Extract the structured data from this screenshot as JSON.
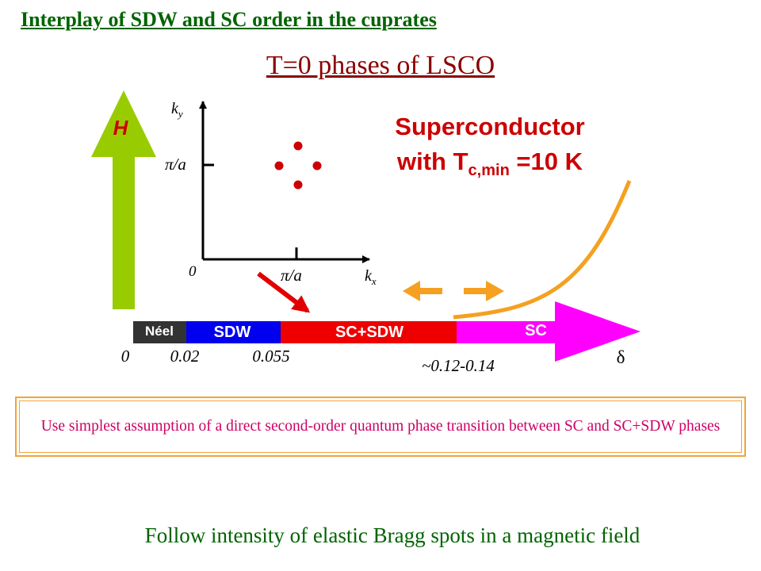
{
  "heading": "Interplay of SDW and SC order in the cuprates",
  "subtitle": "T=0 phases of LSCO",
  "field_arrow_label": "H",
  "inset": {
    "y_axis_label": "k",
    "y_axis_sub": "y",
    "x_axis_label": "k",
    "x_axis_sub": "x",
    "y_tick": "π/a",
    "x_tick": "π/a",
    "origin": "0"
  },
  "sc_text": {
    "line1": "Superconductor",
    "line2_pre": "with T",
    "line2_sub": "c,min",
    "line2_post": " =10 K"
  },
  "phases": [
    {
      "label": "Néel",
      "color": "#333333"
    },
    {
      "label": "SDW",
      "color": "#0000ee"
    },
    {
      "label": "SC+SDW",
      "color": "#ee0000"
    },
    {
      "label": "SC",
      "color": "#ff00ff"
    }
  ],
  "doping_ticks": {
    "zero": "0",
    "neel_end": "0.02",
    "sdw_end": "0.055",
    "sc_onset": "~0.12-0.14"
  },
  "doping_axis_label": "δ",
  "note": "Use simplest assumption of a direct second-order quantum phase transition between SC and SC+SDW phases",
  "footer": "Follow intensity of elastic Bragg spots in a magnetic field",
  "colors": {
    "heading": "#006400",
    "subtitle": "#8b0000",
    "superconductor_text": "#cc0000",
    "field_arrow": "#99cc00",
    "orange": "#f5a020",
    "note_text": "#cc0066"
  }
}
